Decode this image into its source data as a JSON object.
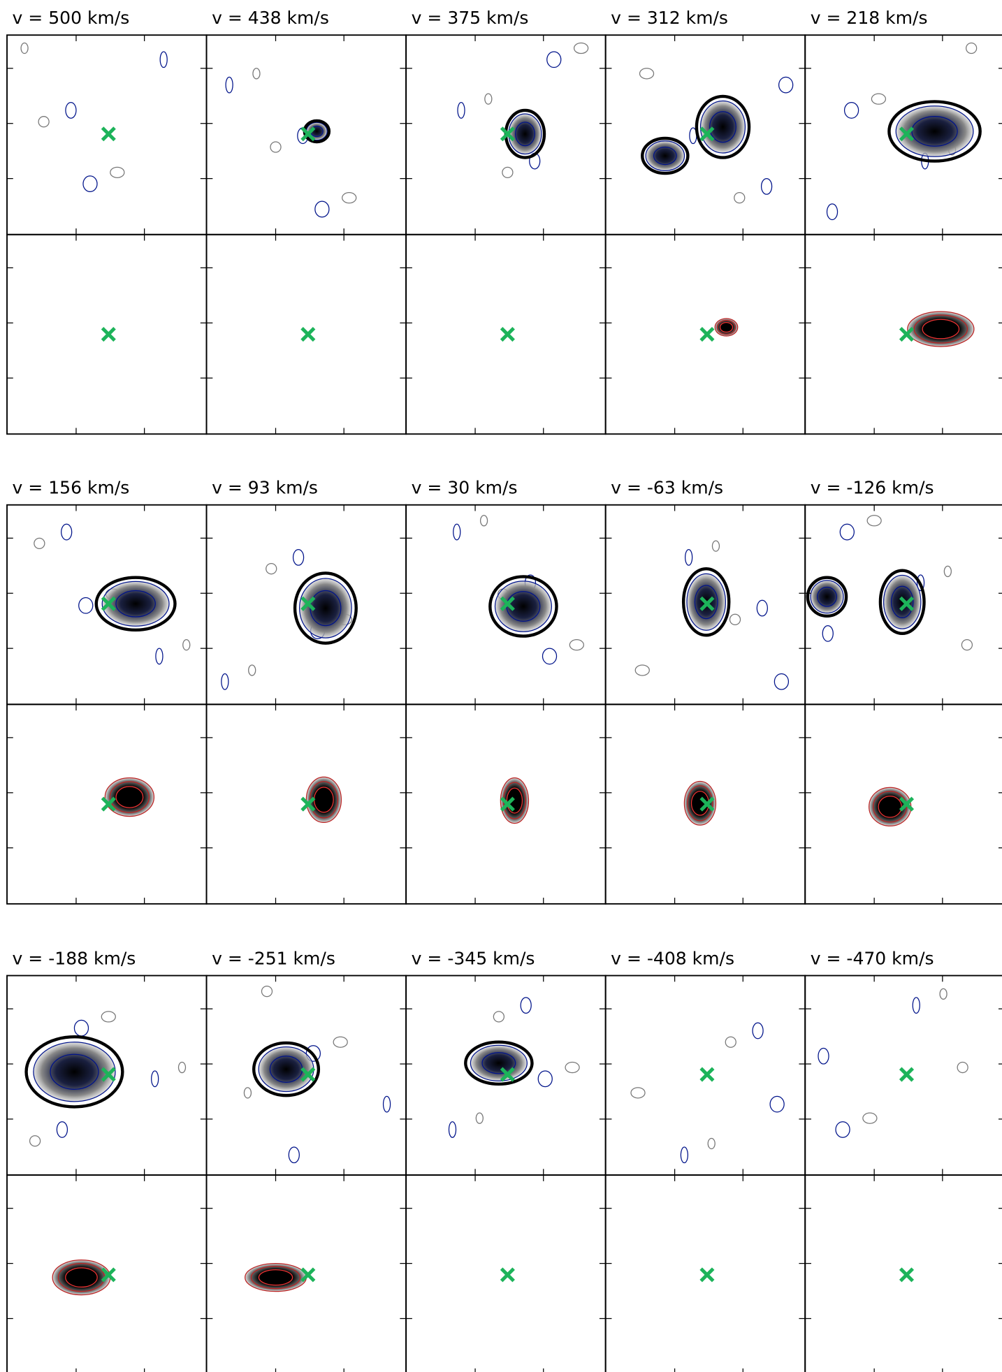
{
  "panels": [
    {
      "label": "v = 500 km/s"
    },
    {
      "label": "v = 438 km/s"
    },
    {
      "label": "v = 375 km/s"
    },
    {
      "label": "v = 312 km/s"
    },
    {
      "label": "v = 218 km/s"
    },
    {
      "label": "v = 156 km/s"
    },
    {
      "label": "v = 93 km/s"
    },
    {
      "label": "v = 30 km/s"
    },
    {
      "label": "v = -63 km/s"
    },
    {
      "label": "v = -126 km/s"
    },
    {
      "label": "v = -188 km/s"
    },
    {
      "label": "v = -251 km/s"
    },
    {
      "label": "v = -345 km/s"
    },
    {
      "label": "v = -408 km/s"
    },
    {
      "label": "v = -470 km/s"
    }
  ]
}
